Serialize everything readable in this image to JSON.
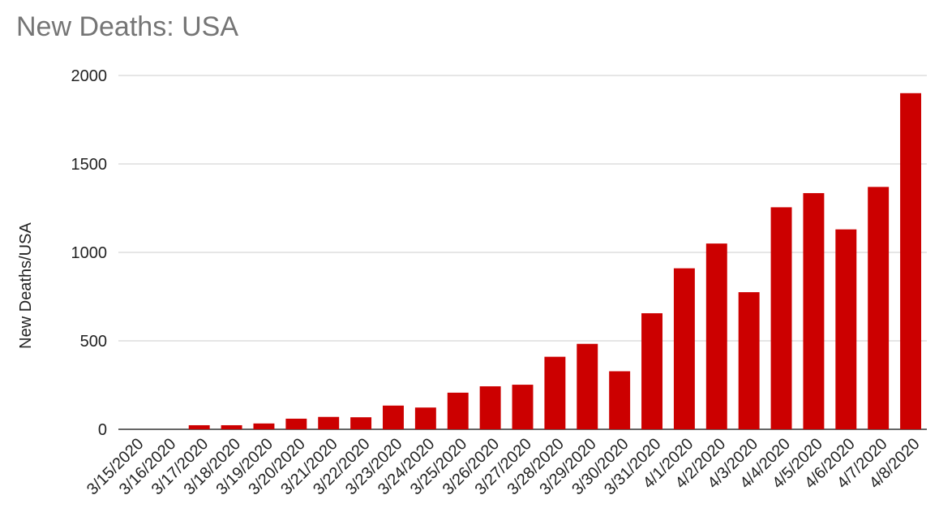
{
  "chart_data": {
    "type": "bar",
    "title": "New Deaths: USA",
    "xlabel": "",
    "ylabel": "New Deaths/USA",
    "ylim": [
      0,
      2000
    ],
    "yticks": [
      0,
      500,
      1000,
      1500,
      2000
    ],
    "grid": true,
    "legend": "none",
    "bar_color": "#cc0000",
    "categories": [
      "3/15/2020",
      "3/16/2020",
      "3/17/2020",
      "3/18/2020",
      "3/19/2020",
      "3/20/2020",
      "3/21/2020",
      "3/22/2020",
      "3/23/2020",
      "3/24/2020",
      "3/25/2020",
      "3/26/2020",
      "3/27/2020",
      "3/28/2020",
      "3/29/2020",
      "3/30/2020",
      "3/31/2020",
      "4/1/2020",
      "4/2/2020",
      "4/3/2020",
      "4/4/2020",
      "4/5/2020",
      "4/6/2020",
      "4/7/2020",
      "4/8/2020"
    ],
    "values": [
      0,
      0,
      23,
      23,
      33,
      60,
      70,
      68,
      134,
      123,
      207,
      243,
      252,
      410,
      483,
      328,
      656,
      910,
      1050,
      775,
      1255,
      1335,
      1130,
      1370,
      1900
    ]
  }
}
